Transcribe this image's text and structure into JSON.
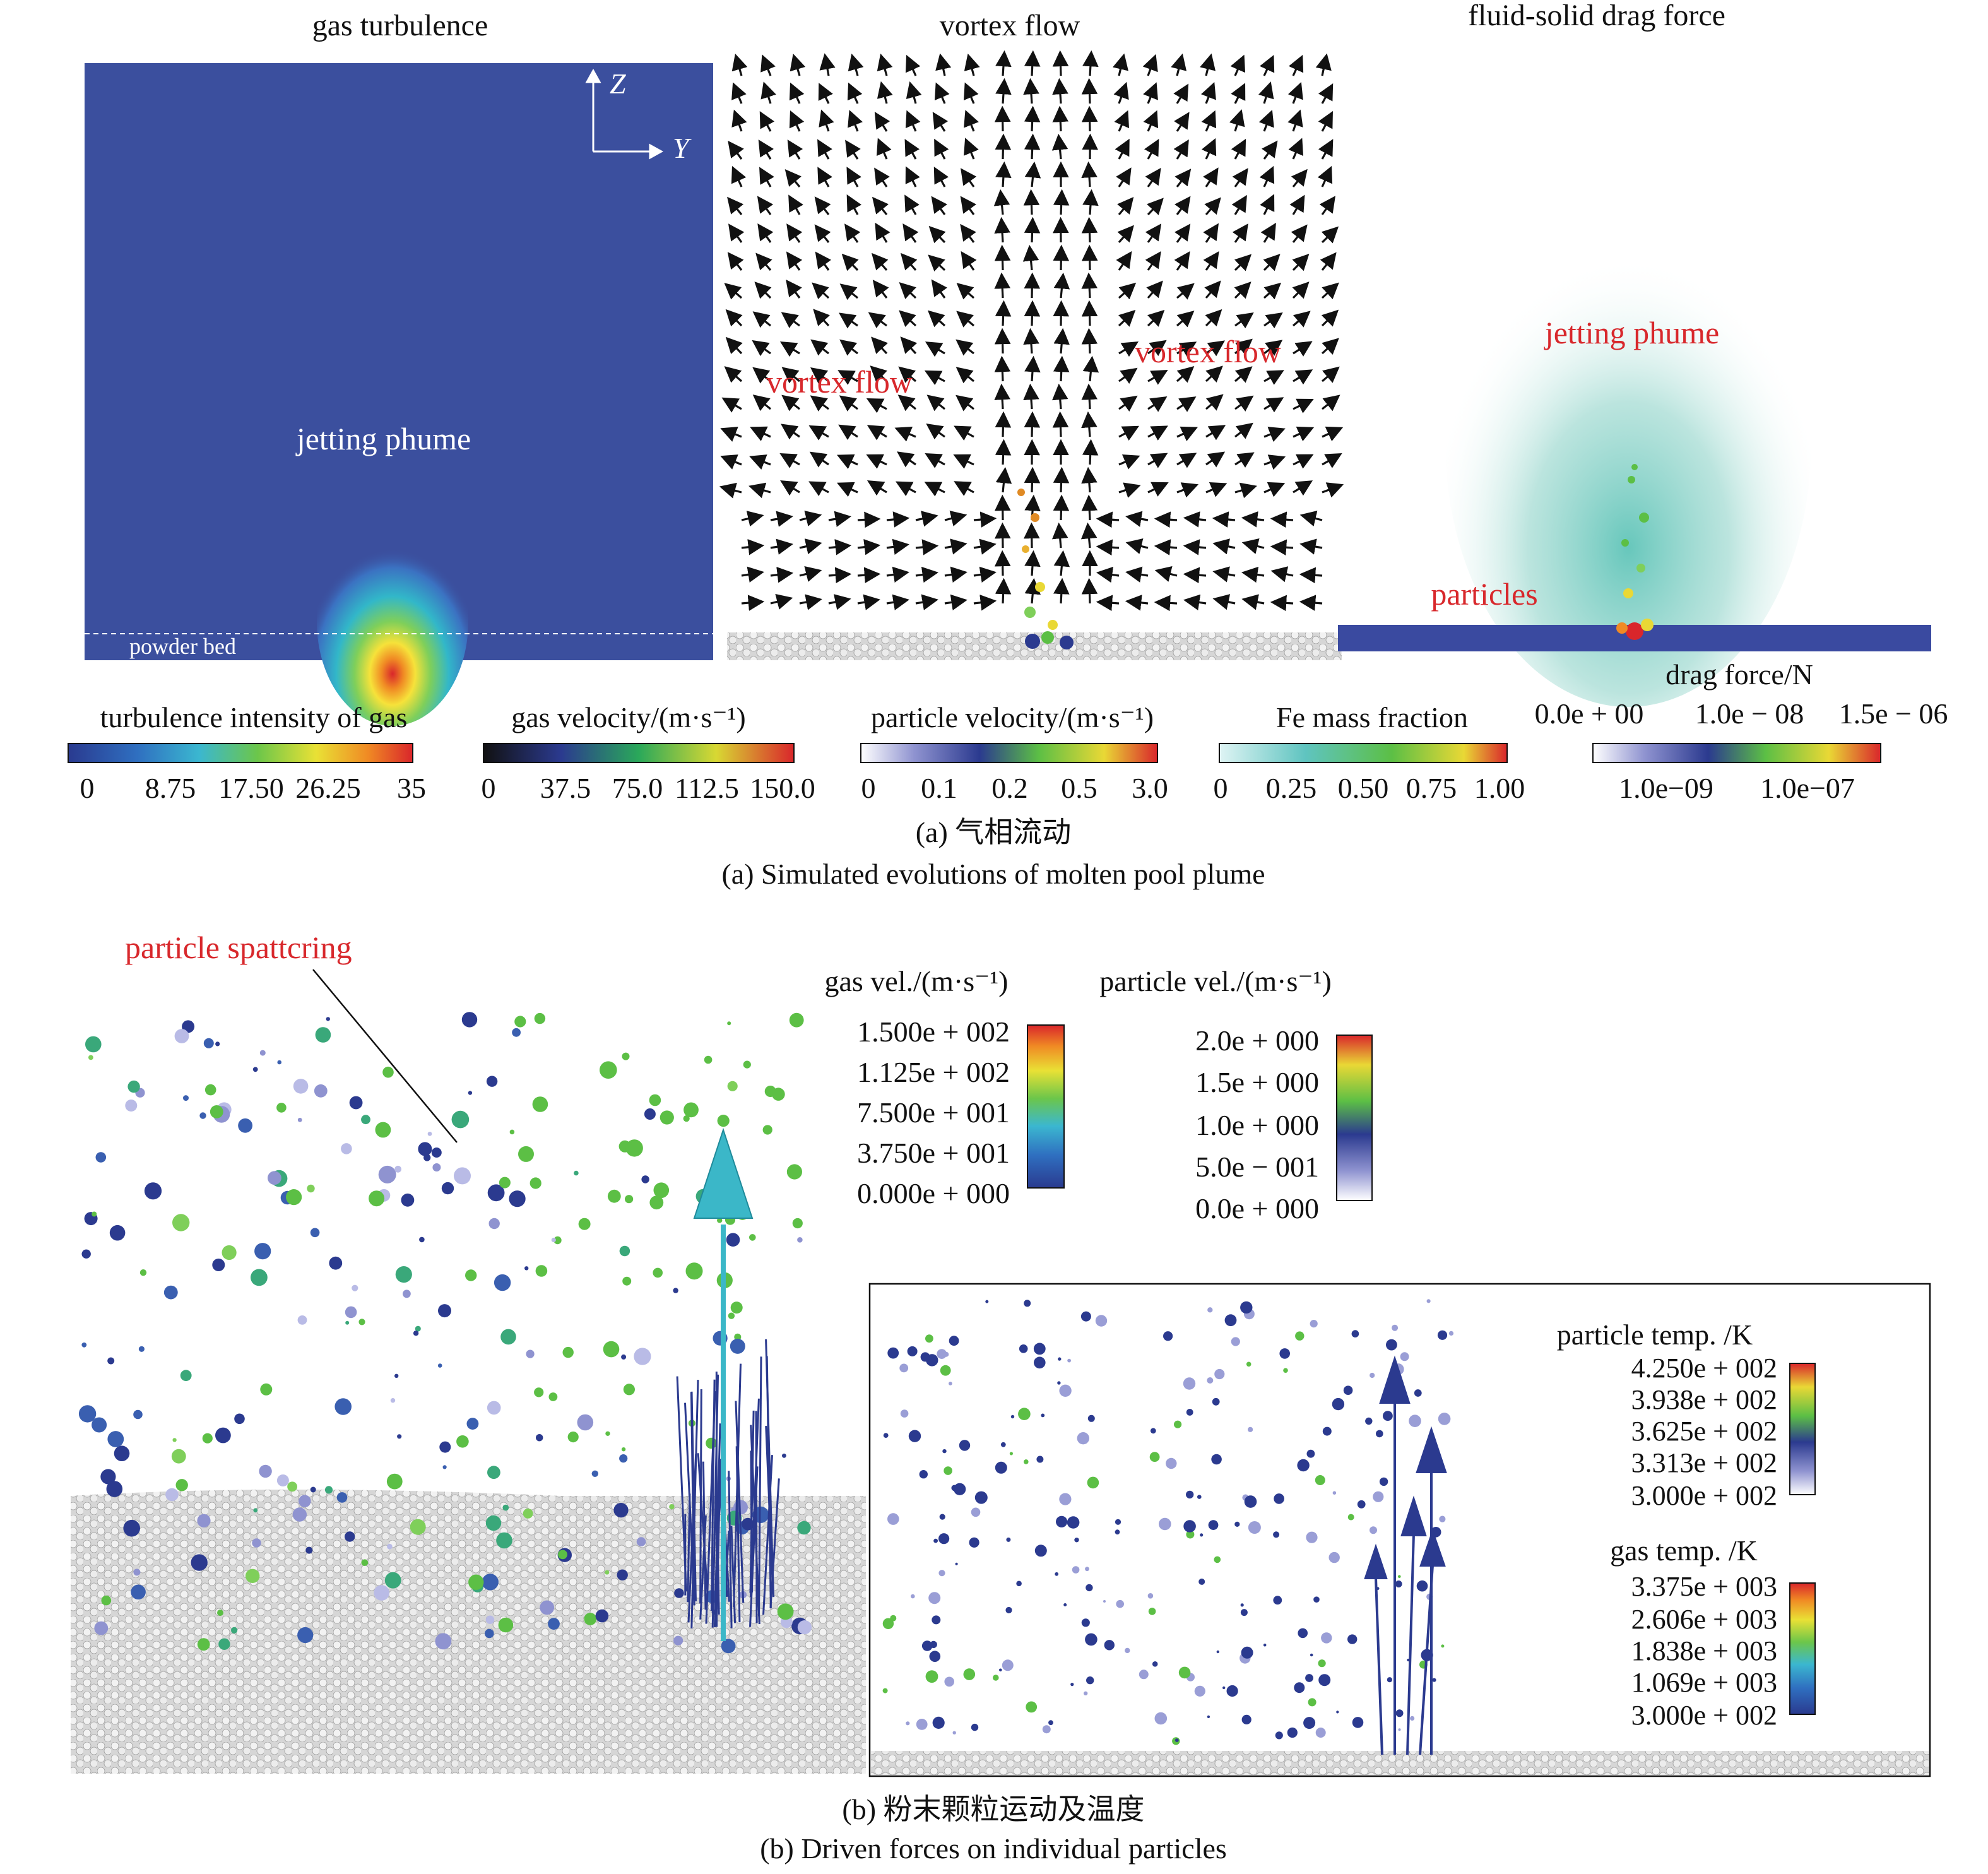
{
  "panel_a": {
    "titles": [
      "gas turbulence",
      "vortex flow",
      "fluid-solid drag force"
    ],
    "axes": {
      "z": "Z",
      "y": "Y"
    },
    "labels": {
      "jetting_1": "jetting phume",
      "powder_bed": "powder bed",
      "vortex_left": "vortex flow",
      "vortex_right": "vortex flow",
      "jetting_2": "jetting phume",
      "particles": "particles"
    },
    "colorbars": [
      {
        "title": "turbulence intensity of gas",
        "ticks": [
          "0",
          "8.75",
          "17.50",
          "26.25",
          "35"
        ]
      },
      {
        "title": "gas velocity/(m·s⁻¹)",
        "ticks": [
          "0",
          "37.5",
          "75.0",
          "112.5",
          "150.0"
        ]
      },
      {
        "title": "particle velocity/(m·s⁻¹)",
        "ticks": [
          "0",
          "0.1",
          "0.2",
          "0.5",
          "3.0"
        ]
      },
      {
        "title": "Fe mass fraction",
        "ticks": [
          "0",
          "0.25",
          "0.50",
          "0.75",
          "1.00"
        ]
      },
      {
        "title": "drag force/N",
        "top_ticks": [
          "0.0e + 00",
          "1.0e − 08",
          "1.5e − 06"
        ],
        "ticks": [
          "1.0e−09",
          "1.0e−07"
        ]
      }
    ],
    "caption_cn": "(a) 气相流动",
    "caption_en": "(a) Simulated evolutions of molten pool plume"
  },
  "panel_b": {
    "spattering_label": "particle spattcring",
    "legend_gas_vel": {
      "title": "gas vel./(m·s⁻¹)",
      "values": [
        "1.500e + 002",
        "1.125e + 002",
        "7.500e + 001",
        "3.750e + 001",
        "0.000e + 000"
      ]
    },
    "legend_particle_vel": {
      "title": "particle vel./(m·s⁻¹)",
      "values": [
        "2.0e + 000",
        "1.5e + 000",
        "1.0e + 000",
        "5.0e − 001",
        "0.0e + 000"
      ]
    },
    "legend_particle_temp": {
      "title": "particle temp. /K",
      "values": [
        "4.250e + 002",
        "3.938e + 002",
        "3.625e + 002",
        "3.313e + 002",
        "3.000e + 002"
      ]
    },
    "legend_gas_temp": {
      "title": "gas temp. /K",
      "values": [
        "3.375e + 003",
        "2.606e + 003",
        "1.838e + 003",
        "1.069e + 003",
        "3.000e + 002"
      ]
    },
    "caption_cn": "(b) 粉末颗粒运动及温度",
    "caption_en": "(b) Driven forces on individual particles"
  },
  "colors": {
    "field_blue": "#3b4f9e",
    "label_red": "#d8282c",
    "bed_gray": "#cfcfcf"
  }
}
